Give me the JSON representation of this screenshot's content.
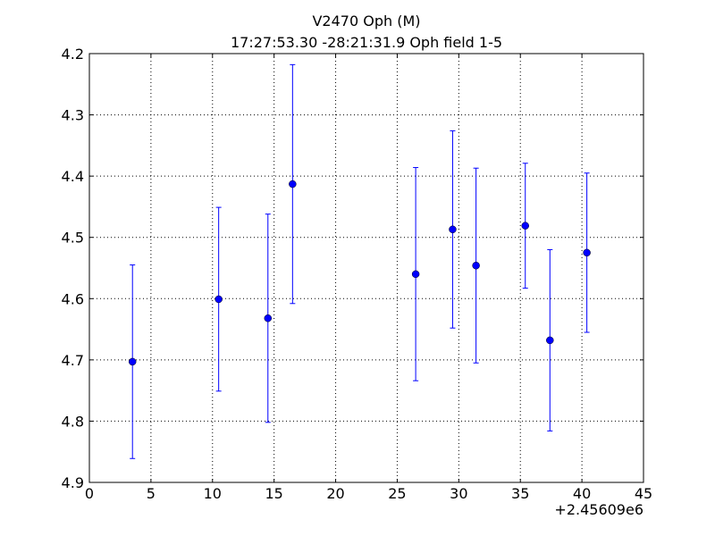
{
  "chart_data": {
    "type": "errorbar",
    "title": "V2470 Oph (M)",
    "subtitle": "17:27:53.30 -28:21:31.9 Oph field 1-5",
    "x_offset_label": "+2.45609e6",
    "x": [
      3.5,
      10.5,
      14.5,
      16.5,
      26.5,
      29.5,
      31.4,
      35.4,
      37.4,
      40.4
    ],
    "values": [
      4.703,
      4.601,
      4.632,
      4.413,
      4.56,
      4.487,
      4.546,
      4.481,
      4.668,
      4.525
    ],
    "errors": [
      0.158,
      0.15,
      0.17,
      0.195,
      0.174,
      0.161,
      0.159,
      0.102,
      0.148,
      0.13
    ],
    "color": "#0000ff",
    "xlim": [
      0,
      45
    ],
    "xticks": [
      0,
      5,
      10,
      15,
      20,
      25,
      30,
      35,
      40,
      45
    ],
    "ylim": [
      4.9,
      4.2
    ],
    "yticks": [
      4.2,
      4.3,
      4.4,
      4.5,
      4.6,
      4.7,
      4.8,
      4.9
    ],
    "grid": true
  }
}
